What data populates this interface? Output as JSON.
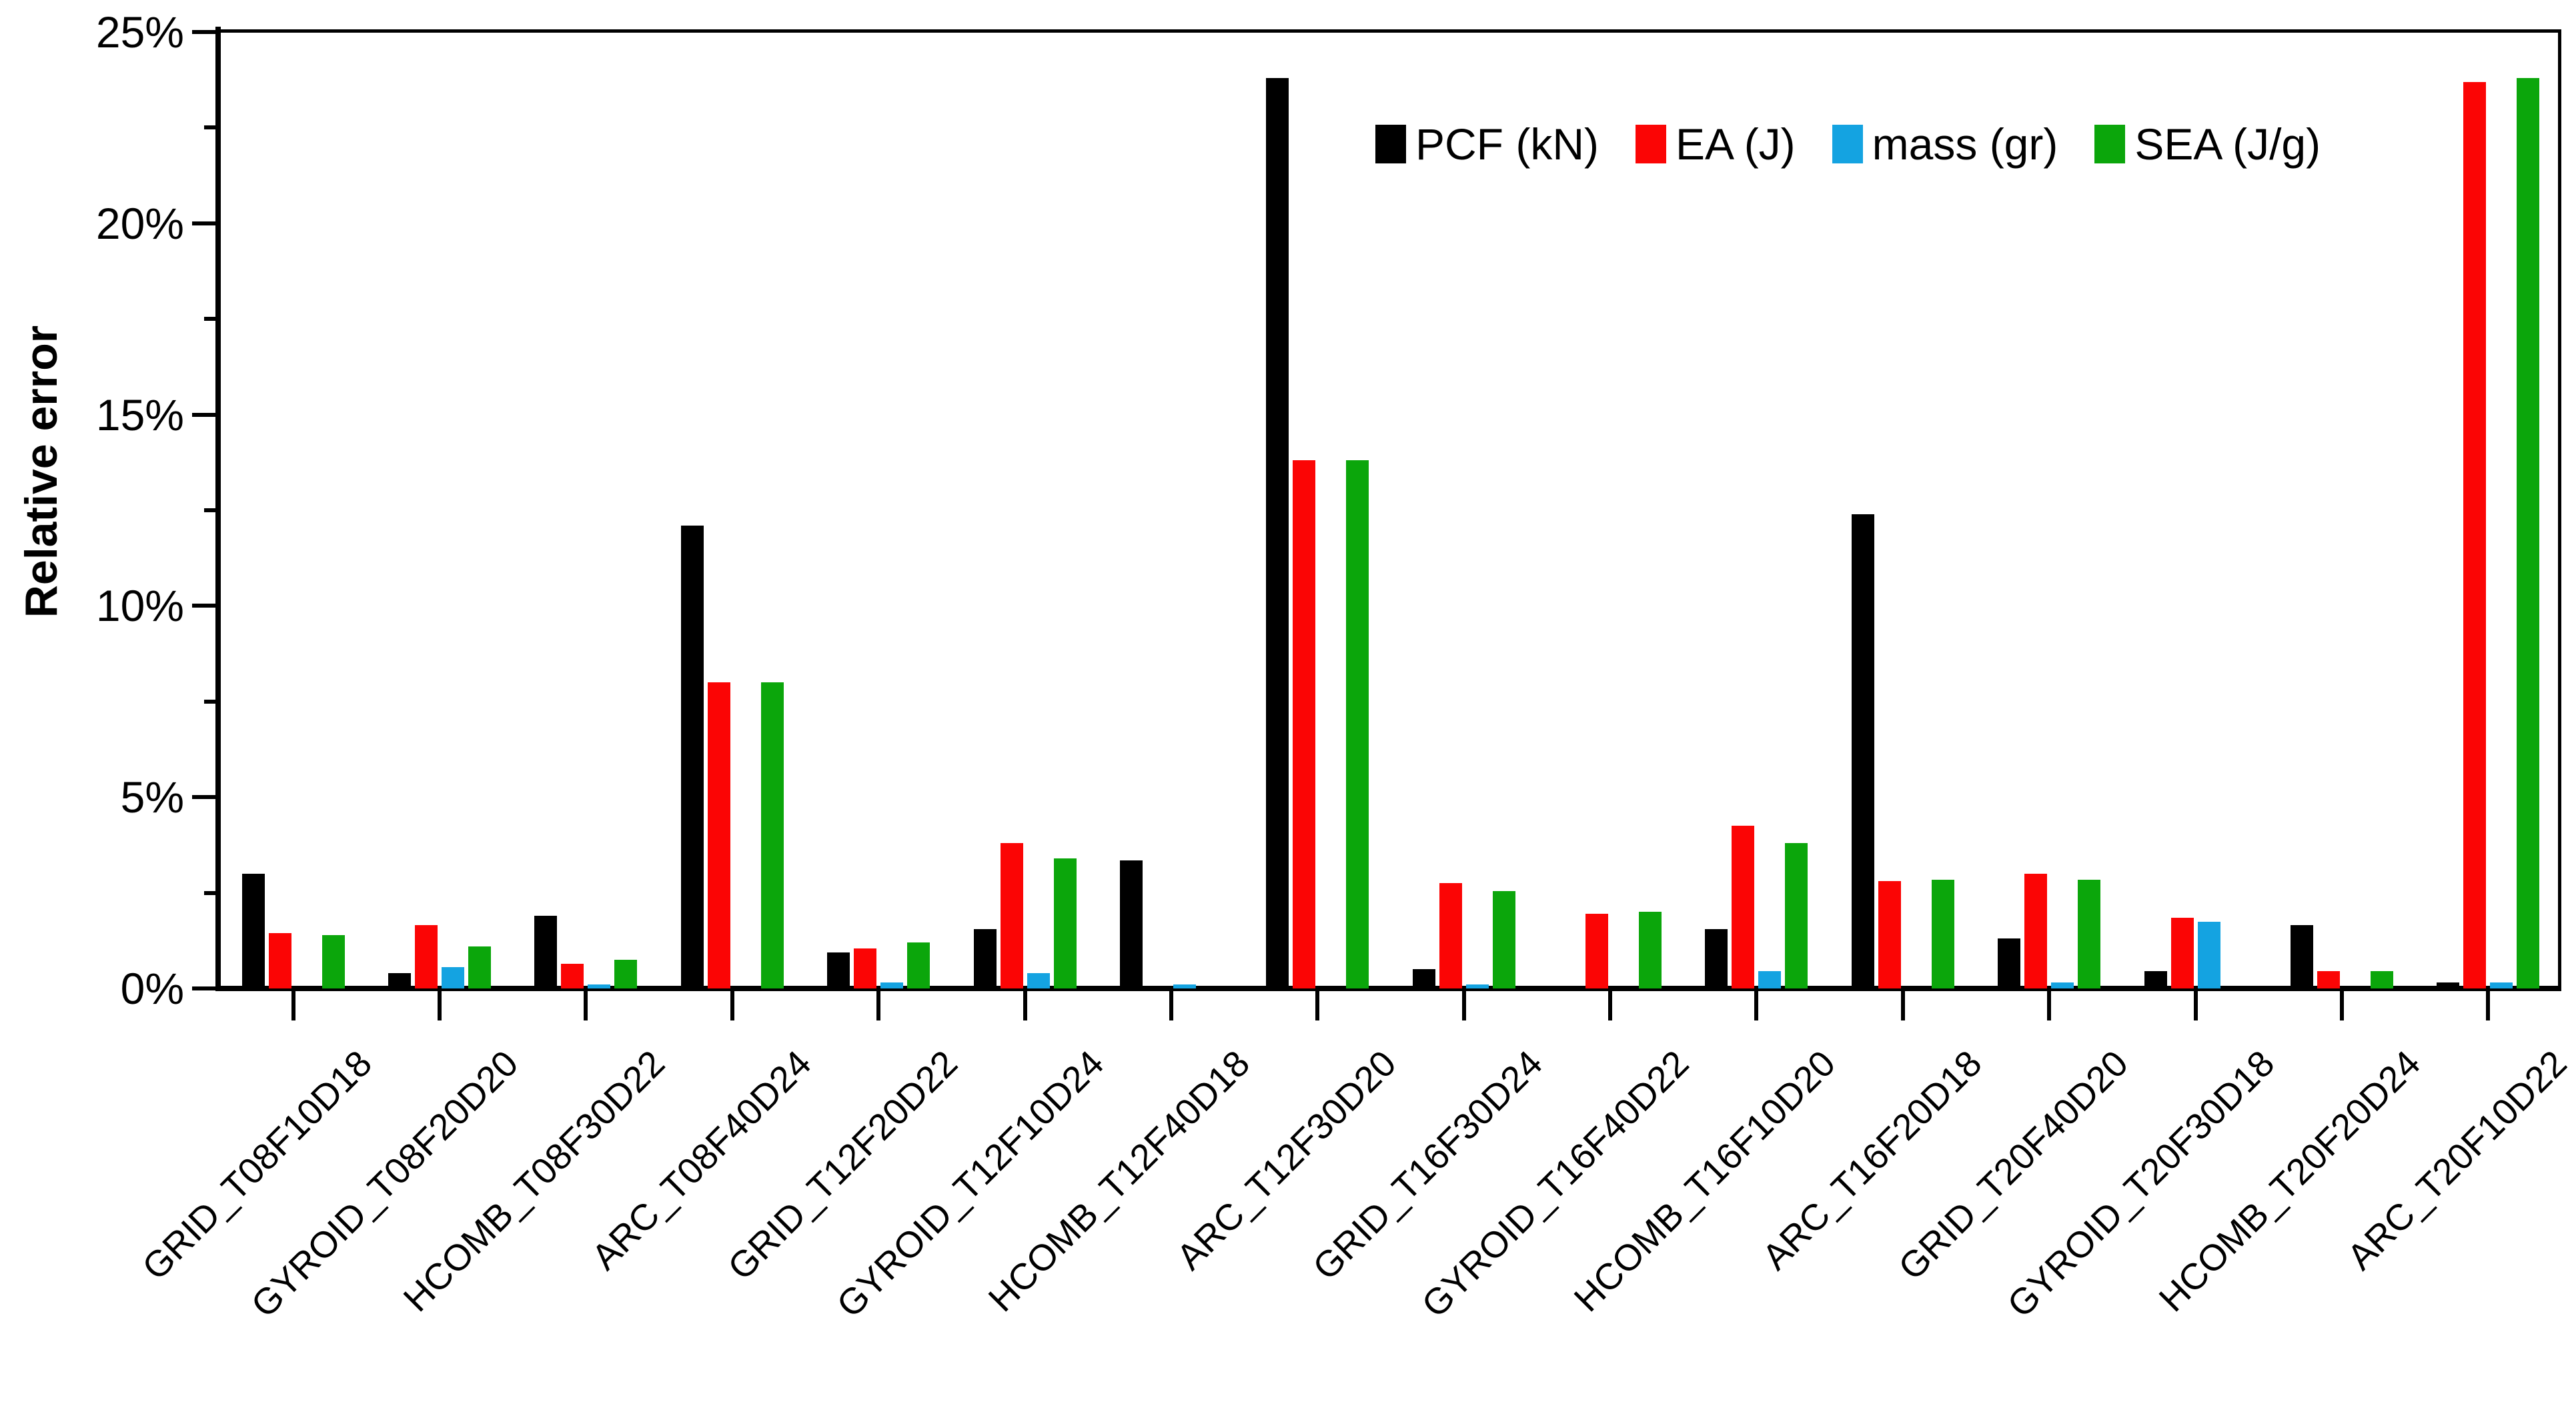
{
  "figure": {
    "background": "#ffffff",
    "axis_color": "#000000"
  },
  "chart_data": {
    "type": "bar",
    "title": "",
    "xlabel": "",
    "ylabel": "Relative error",
    "y_unit": "%",
    "ylim": [
      0,
      25
    ],
    "y_major_step": 5,
    "y_minor_step": 2.5,
    "y_tick_labels": [
      "0%",
      "5%",
      "10%",
      "15%",
      "20%",
      "25%"
    ],
    "grid": false,
    "legend_position": "top-inside-right",
    "categories": [
      "GRID_T08F10D18",
      "GYROID_T08F20D20",
      "HCOMB_T08F30D22",
      "ARC_T08F40D24",
      "GRID_T12F20D22",
      "GYROID_T12F10D24",
      "HCOMB_T12F40D18",
      "ARC_T12F30D20",
      "GRID_T16F30D24",
      "GYROID_T16F40D22",
      "HCOMB_T16F10D20",
      "ARC_T16F20D18",
      "GRID_T20F40D20",
      "GYROID_T20F30D18",
      "HCOMB_T20F20D24",
      "ARC_T20F10D22"
    ],
    "series": [
      {
        "name": "PCF (kN)",
        "color": "#000000",
        "values": [
          3.0,
          0.4,
          1.9,
          12.1,
          0.95,
          1.55,
          3.35,
          23.8,
          0.5,
          0,
          1.55,
          12.4,
          1.3,
          0.45,
          1.65,
          0.15
        ]
      },
      {
        "name": "EA (J)",
        "color": "#fb0505",
        "values": [
          1.45,
          1.65,
          0.65,
          8.0,
          1.05,
          3.8,
          0,
          13.8,
          2.75,
          1.95,
          4.25,
          2.8,
          3.0,
          1.85,
          0.45,
          23.7
        ]
      },
      {
        "name": "mass (gr)",
        "color": "#14a3e1",
        "values": [
          0,
          0.55,
          0.1,
          0,
          0.15,
          0.4,
          0.1,
          0,
          0.1,
          0,
          0.45,
          0,
          0.15,
          1.75,
          0,
          0.15
        ]
      },
      {
        "name": "SEA (J/g)",
        "color": "#0ba60b",
        "values": [
          1.4,
          1.1,
          0.75,
          8.0,
          1.2,
          3.4,
          0,
          13.8,
          2.55,
          2.0,
          3.8,
          2.85,
          2.85,
          0,
          0.45,
          23.8
        ]
      }
    ]
  }
}
